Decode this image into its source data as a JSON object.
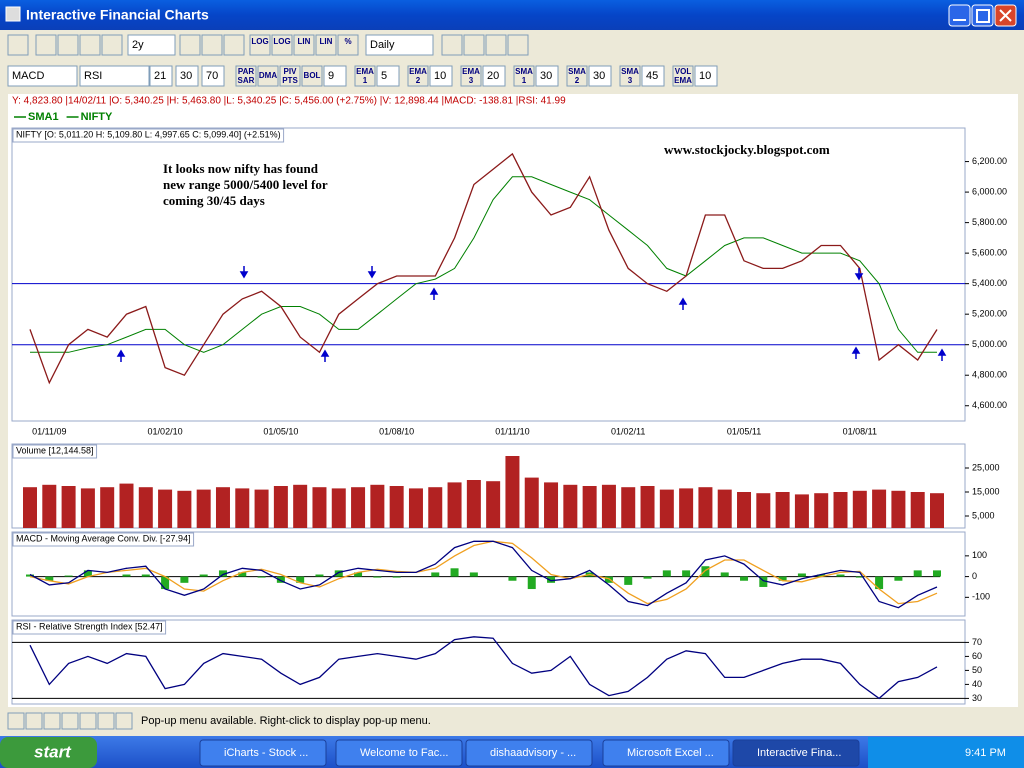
{
  "window": {
    "title": "Interactive Financial Charts"
  },
  "toolbar": {
    "period": "2y",
    "interval": "Daily",
    "scale_buttons": [
      "LOG",
      "LOG",
      "LIN",
      "LIN",
      "%"
    ]
  },
  "indicator_bar": {
    "lower_panels": [
      "MACD",
      "RSI"
    ],
    "macd_params": [
      21,
      30,
      70
    ],
    "overlays": [
      {
        "button": "PAR SAR"
      },
      {
        "button": "DMA"
      },
      {
        "button": "PIV PTS"
      },
      {
        "button": "BOL",
        "value": 9
      },
      {
        "button": "EMA 1",
        "value": 5
      },
      {
        "button": "EMA 2",
        "value": 10
      },
      {
        "button": "EMA 3",
        "value": 20
      },
      {
        "button": "SMA 1",
        "value": 30
      },
      {
        "button": "SMA 2",
        "value": 30
      },
      {
        "button": "SMA 3",
        "value": 45
      },
      {
        "button": "VOL EMA",
        "value": 10
      }
    ]
  },
  "info_line": "Y: 4,823.80 |14/02/11 |O: 5,340.25 |H: 5,463.80 |L: 5,340.25 |C: 5,456.00 (+2.75%) |V: 12,898.44 |MACD: -138.81 |RSI: 41.99",
  "chart_data": [
    {
      "type": "line",
      "title": "NIFTY [O: 5,011.20  H: 5,109.80  L: 4,997.65  C: 5,099.40] (+2.51%)",
      "annotations": [
        "It looks now nifty has found",
        "new range 5000/5400 level for",
        "coming 30/45 days"
      ],
      "watermark": "www.stockjocky.blogspot.com",
      "categories": [
        null,
        "01/11/09",
        null,
        null,
        null,
        null,
        null,
        "01/02/10",
        null,
        null,
        null,
        null,
        null,
        "01/05/10",
        null,
        null,
        null,
        null,
        null,
        "01/08/10",
        null,
        null,
        null,
        null,
        null,
        "01/11/10",
        null,
        null,
        null,
        null,
        null,
        "01/02/11",
        null,
        null,
        null,
        null,
        null,
        "01/05/11",
        null,
        null,
        null,
        null,
        null,
        "01/08/11",
        null,
        null,
        null,
        null
      ],
      "series": [
        {
          "name": "SMA1",
          "color": "#008000",
          "values": [
            4950,
            4950,
            4950,
            4980,
            5000,
            5050,
            5100,
            5100,
            5000,
            4950,
            5000,
            5100,
            5200,
            5250,
            5250,
            5200,
            5100,
            5100,
            5200,
            5300,
            5400,
            5430,
            5500,
            5700,
            5950,
            6100,
            6100,
            6050,
            6000,
            5950,
            5850,
            5750,
            5650,
            5500,
            5450,
            5550,
            5650,
            5700,
            5700,
            5650,
            5600,
            5600,
            5600,
            5550,
            5400,
            5100,
            4950,
            4950
          ]
        },
        {
          "name": "NIFTY",
          "color": "#8b1a1a",
          "values": [
            5100,
            4750,
            5000,
            5100,
            5050,
            5200,
            5250,
            4850,
            4800,
            5000,
            5200,
            5300,
            5350,
            5250,
            5050,
            4950,
            5200,
            5300,
            5400,
            5450,
            5450,
            5450,
            5700,
            6050,
            6150,
            6250,
            6000,
            5850,
            5900,
            6100,
            5750,
            5500,
            5400,
            5350,
            5450,
            5850,
            5850,
            5550,
            5500,
            5500,
            5550,
            5650,
            5650,
            5500,
            4900,
            5000,
            4900,
            5099.4
          ]
        }
      ],
      "hlines": [
        5400,
        5000
      ],
      "hline_color": "#0000cc",
      "ylim": [
        4500,
        6420
      ],
      "yticks": [
        {
          "value": 4600,
          "label": "4,600.00"
        },
        {
          "value": 4800,
          "label": "4,800.00"
        },
        {
          "value": 5000,
          "label": "5,000.00"
        },
        {
          "value": 5200,
          "label": "5,200.00"
        },
        {
          "value": 5400,
          "label": "5,400.00"
        },
        {
          "value": 5600,
          "label": "5,600.00"
        },
        {
          "value": 5800,
          "label": "5,800.00"
        },
        {
          "value": 6000,
          "label": "6,000.00"
        },
        {
          "value": 6200,
          "label": "6,200.00"
        }
      ]
    },
    {
      "type": "bar",
      "title": "Volume [12,144.58]",
      "color": "#b22222",
      "values": [
        17000,
        18000,
        17500,
        16500,
        17000,
        18500,
        17000,
        16000,
        15500,
        16000,
        17000,
        16500,
        16000,
        17500,
        18000,
        17000,
        16500,
        17000,
        18000,
        17500,
        16500,
        17000,
        19000,
        20000,
        19500,
        30000,
        21000,
        19000,
        18000,
        17500,
        18000,
        17000,
        17500,
        16000,
        16500,
        17000,
        16000,
        15000,
        14500,
        15000,
        14000,
        14500,
        15000,
        15500,
        16000,
        15500,
        15000,
        14500
      ],
      "ylim": [
        0,
        35000
      ],
      "yticks": [
        {
          "value": 5000,
          "label": "5,000"
        },
        {
          "value": 15000,
          "label": "15,000"
        },
        {
          "value": 25000,
          "label": "25,000"
        }
      ]
    },
    {
      "type": "line",
      "title": "MACD - Moving Average Conv. Div. [-27.94]",
      "series": [
        {
          "style": "bar",
          "color": "#22aa22",
          "values": [
            10,
            -20,
            5,
            30,
            0,
            10,
            10,
            -60,
            -30,
            10,
            30,
            20,
            -5,
            -30,
            -30,
            10,
            30,
            20,
            -5,
            -5,
            0,
            20,
            40,
            20,
            0,
            -20,
            -60,
            -30,
            0,
            20,
            -30,
            -40,
            -10,
            30,
            30,
            50,
            20,
            -20,
            -50,
            -20,
            15,
            10,
            10,
            -5,
            -60,
            -20,
            30,
            30
          ]
        },
        {
          "color": "#f0a020",
          "values": [
            0,
            -20,
            -35,
            0,
            20,
            30,
            40,
            0,
            -60,
            -70,
            -20,
            20,
            35,
            10,
            -30,
            -50,
            -10,
            20,
            35,
            25,
            20,
            40,
            100,
            150,
            170,
            160,
            90,
            10,
            -10,
            10,
            -10,
            -80,
            -130,
            -110,
            -60,
            30,
            80,
            80,
            30,
            -20,
            -25,
            0,
            20,
            25,
            -60,
            -130,
            -120,
            -80
          ]
        },
        {
          "color": "#000080",
          "values": [
            10,
            -40,
            -30,
            30,
            20,
            40,
            50,
            -60,
            -90,
            -60,
            10,
            40,
            30,
            -20,
            -60,
            -40,
            20,
            40,
            30,
            20,
            20,
            60,
            140,
            170,
            170,
            140,
            30,
            -20,
            -10,
            30,
            -40,
            -120,
            -140,
            -80,
            -30,
            80,
            100,
            60,
            -20,
            -40,
            -10,
            10,
            30,
            20,
            -120,
            -150,
            -90,
            -50
          ]
        }
      ],
      "ylim": [
        -190,
        215
      ],
      "yticks": [
        100,
        0,
        -100
      ]
    },
    {
      "type": "line",
      "title": "RSI - Relative Strength Index [52.47]",
      "series": [
        {
          "color": "#000080",
          "values": [
            68,
            40,
            55,
            60,
            55,
            62,
            60,
            37,
            40,
            55,
            62,
            60,
            58,
            48,
            40,
            45,
            58,
            60,
            62,
            60,
            58,
            62,
            72,
            74,
            73,
            55,
            48,
            50,
            60,
            40,
            32,
            35,
            45,
            58,
            64,
            62,
            45,
            45,
            50,
            55,
            58,
            58,
            55,
            40,
            30,
            42,
            45,
            52.47
          ]
        }
      ],
      "hlines": [
        70,
        30
      ],
      "hline_color": "#000000",
      "ylim": [
        26,
        86
      ],
      "yticks": [
        70,
        60,
        50,
        40,
        30
      ]
    }
  ],
  "status": "Pop-up menu available. Right-click to display pop-up menu.",
  "taskbar": {
    "start": "start",
    "items": [
      "iCharts - Stock ...",
      "Welcome to Fac...",
      "dishaadvisory - ...",
      "Microsoft Excel ...",
      "Interactive Fina..."
    ],
    "clock": "9:41 PM"
  }
}
